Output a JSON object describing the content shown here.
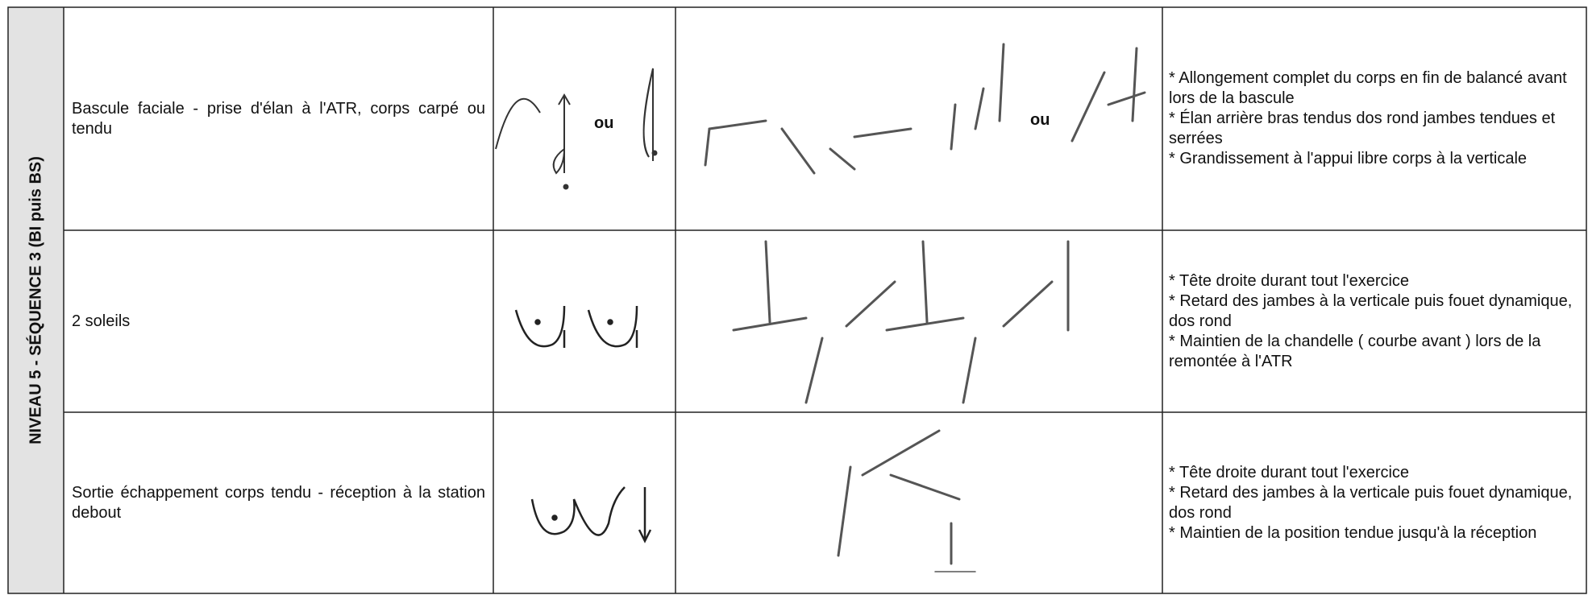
{
  "side_label": "NIVEAU 5 - SÉQUENCE 3 (BI puis BS)",
  "rows": [
    {
      "element": "Bascule faciale - prise d'élan à l'ATR, corps carpé ou tendu",
      "symbol_text": "ou",
      "figure_text": "ou",
      "criteria": [
        "* Allongement complet du corps en fin de balancé avant lors de la bascule",
        "* Élan arrière bras tendus dos rond jambes tendues et serrées",
        "* Grandissement à l'appui libre corps à la verticale"
      ]
    },
    {
      "element": "2 soleils",
      "criteria": [
        "* Tête droite durant tout l'exercice",
        "* Retard des jambes à la verticale puis fouet dynamique, dos rond",
        "* Maintien de la chandelle ( courbe avant ) lors de la remontée à l'ATR"
      ]
    },
    {
      "element": "Sortie échappement corps tendu - réception à la station debout",
      "criteria": [
        "* Tête droite durant tout l'exercice",
        "* Retard des jambes à la verticale puis fouet dynamique, dos rond",
        "* Maintien de la position tendue jusqu'à la réception"
      ]
    }
  ]
}
